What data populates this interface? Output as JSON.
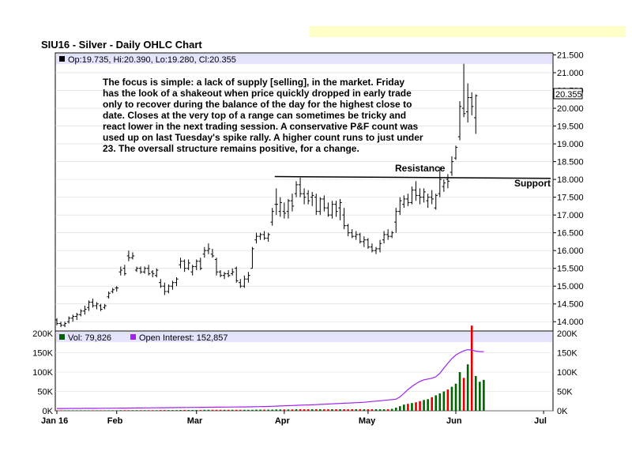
{
  "chart_data": {
    "type": "ohlc",
    "title": "SIU16 - Silver - Daily OHLC Chart",
    "price_panel": {
      "legend_text": "Op:19.735, Hi:20.390, Lo:19.280, Cl:20.355",
      "ylim": [
        13.75,
        21.5
      ],
      "y_ticks": [
        "21.500",
        "21.000",
        "20.500",
        "20.000",
        "19.500",
        "19.000",
        "18.500",
        "18.000",
        "17.500",
        "17.000",
        "16.500",
        "16.000",
        "15.500",
        "15.000",
        "14.500",
        "14.000"
      ],
      "last_price_label": "20.355",
      "last_close": 20.355,
      "annotation_lines": [
        "The focus is simple: a lack of supply [selling], in the market.  Friday",
        "has the look of a shakeout when price quickly dropped in early trade",
        "only to recover during the balance of the day for the highest close to",
        "date. Closes at the very top of a range can sometimes be tricky and",
        "react lower in the next trading session.  A conservative P&F count was",
        "used up on last Tuesday's spike rally.  A higher count runs to just under",
        "23.  The oversall structure remains positive, for a change."
      ],
      "resistance_label": "Resistance",
      "support_label": "Support",
      "resistance_line": {
        "from_index": 55,
        "to_index": 89,
        "from_value": 18.08,
        "to_value": 18.03
      },
      "bars": [
        {
          "o": 14.05,
          "h": 14.1,
          "l": 13.9,
          "c": 13.95
        },
        {
          "o": 13.95,
          "h": 14.0,
          "l": 13.85,
          "c": 13.9
        },
        {
          "o": 13.9,
          "h": 14.0,
          "l": 13.85,
          "c": 13.95
        },
        {
          "o": 14.0,
          "h": 14.15,
          "l": 13.95,
          "c": 14.1
        },
        {
          "o": 14.1,
          "h": 14.2,
          "l": 14.0,
          "c": 14.15
        },
        {
          "o": 14.15,
          "h": 14.25,
          "l": 14.05,
          "c": 14.2
        },
        {
          "o": 14.2,
          "h": 14.35,
          "l": 14.15,
          "c": 14.3
        },
        {
          "o": 14.3,
          "h": 14.45,
          "l": 14.2,
          "c": 14.35
        },
        {
          "o": 14.4,
          "h": 14.6,
          "l": 14.3,
          "c": 14.55
        },
        {
          "o": 14.55,
          "h": 14.65,
          "l": 14.4,
          "c": 14.45
        },
        {
          "o": 14.45,
          "h": 14.55,
          "l": 14.35,
          "c": 14.5
        },
        {
          "o": 14.45,
          "h": 14.5,
          "l": 14.3,
          "c": 14.35
        },
        {
          "o": 14.4,
          "h": 14.5,
          "l": 14.35,
          "c": 14.45
        },
        {
          "o": 14.7,
          "h": 14.85,
          "l": 14.65,
          "c": 14.8
        },
        {
          "o": 14.85,
          "h": 14.95,
          "l": 14.8,
          "c": 14.9
        },
        {
          "o": 14.95,
          "h": 15.0,
          "l": 14.85,
          "c": 14.95
        },
        {
          "o": 15.4,
          "h": 15.55,
          "l": 15.3,
          "c": 15.45
        },
        {
          "o": 15.5,
          "h": 15.6,
          "l": 15.3,
          "c": 15.35
        },
        {
          "o": 15.85,
          "h": 16.0,
          "l": 15.7,
          "c": 15.8
        },
        {
          "o": 15.8,
          "h": 15.95,
          "l": 15.75,
          "c": 15.85
        },
        {
          "o": 15.45,
          "h": 15.55,
          "l": 15.4,
          "c": 15.5
        },
        {
          "o": 15.5,
          "h": 15.55,
          "l": 15.35,
          "c": 15.4
        },
        {
          "o": 15.4,
          "h": 15.55,
          "l": 15.35,
          "c": 15.5
        },
        {
          "o": 15.5,
          "h": 15.6,
          "l": 15.3,
          "c": 15.35
        },
        {
          "o": 15.4,
          "h": 15.45,
          "l": 15.25,
          "c": 15.35
        },
        {
          "o": 15.3,
          "h": 15.5,
          "l": 15.25,
          "c": 15.45
        },
        {
          "o": 15.1,
          "h": 15.2,
          "l": 14.95,
          "c": 15.0
        },
        {
          "o": 15.0,
          "h": 15.1,
          "l": 14.75,
          "c": 14.85
        },
        {
          "o": 14.85,
          "h": 15.05,
          "l": 14.8,
          "c": 15.0
        },
        {
          "o": 15.0,
          "h": 15.15,
          "l": 14.9,
          "c": 15.1
        },
        {
          "o": 15.1,
          "h": 15.25,
          "l": 15.0,
          "c": 15.2
        },
        {
          "o": 15.6,
          "h": 15.8,
          "l": 15.5,
          "c": 15.7
        },
        {
          "o": 15.7,
          "h": 15.75,
          "l": 15.4,
          "c": 15.5
        },
        {
          "o": 15.5,
          "h": 15.75,
          "l": 15.45,
          "c": 15.65
        },
        {
          "o": 15.4,
          "h": 15.6,
          "l": 15.3,
          "c": 15.55
        },
        {
          "o": 15.55,
          "h": 15.75,
          "l": 15.45,
          "c": 15.7
        },
        {
          "o": 15.7,
          "h": 15.8,
          "l": 15.45,
          "c": 15.5
        },
        {
          "o": 15.9,
          "h": 16.1,
          "l": 15.8,
          "c": 16.0
        },
        {
          "o": 16.0,
          "h": 16.2,
          "l": 15.9,
          "c": 16.05
        },
        {
          "o": 15.9,
          "h": 16.05,
          "l": 15.8,
          "c": 15.85
        },
        {
          "o": 15.75,
          "h": 15.8,
          "l": 15.3,
          "c": 15.4
        },
        {
          "o": 15.4,
          "h": 15.45,
          "l": 15.25,
          "c": 15.3
        },
        {
          "o": 15.3,
          "h": 15.4,
          "l": 15.2,
          "c": 15.35
        },
        {
          "o": 15.35,
          "h": 15.45,
          "l": 15.25,
          "c": 15.3
        },
        {
          "o": 15.35,
          "h": 15.5,
          "l": 15.3,
          "c": 15.4
        },
        {
          "o": 15.5,
          "h": 15.55,
          "l": 15.1,
          "c": 15.15
        },
        {
          "o": 15.1,
          "h": 15.2,
          "l": 14.95,
          "c": 15.0
        },
        {
          "o": 15.0,
          "h": 15.3,
          "l": 14.95,
          "c": 15.2
        },
        {
          "o": 15.2,
          "h": 15.4,
          "l": 15.1,
          "c": 15.3
        },
        {
          "o": 15.5,
          "h": 16.1,
          "l": 15.5,
          "c": 16.05
        },
        {
          "o": 16.3,
          "h": 16.5,
          "l": 16.2,
          "c": 16.4
        },
        {
          "o": 16.4,
          "h": 16.5,
          "l": 16.3,
          "c": 16.45
        },
        {
          "o": 16.45,
          "h": 16.55,
          "l": 16.3,
          "c": 16.35
        },
        {
          "o": 16.35,
          "h": 16.5,
          "l": 16.25,
          "c": 16.45
        },
        {
          "o": 16.8,
          "h": 17.2,
          "l": 16.7,
          "c": 17.1
        },
        {
          "o": 17.3,
          "h": 17.75,
          "l": 17.0,
          "c": 17.3
        },
        {
          "o": 17.1,
          "h": 17.5,
          "l": 16.95,
          "c": 17.35
        },
        {
          "o": 17.1,
          "h": 17.35,
          "l": 16.9,
          "c": 17.05
        },
        {
          "o": 17.1,
          "h": 17.45,
          "l": 16.9,
          "c": 17.4
        },
        {
          "o": 17.4,
          "h": 17.6,
          "l": 17.1,
          "c": 17.25
        },
        {
          "o": 17.6,
          "h": 17.95,
          "l": 17.5,
          "c": 17.85
        },
        {
          "o": 17.85,
          "h": 18.05,
          "l": 17.5,
          "c": 17.6
        },
        {
          "o": 17.6,
          "h": 17.75,
          "l": 17.3,
          "c": 17.5
        },
        {
          "o": 17.6,
          "h": 17.7,
          "l": 17.3,
          "c": 17.4
        },
        {
          "o": 17.5,
          "h": 17.65,
          "l": 17.25,
          "c": 17.55
        },
        {
          "o": 17.5,
          "h": 17.6,
          "l": 17.0,
          "c": 17.1
        },
        {
          "o": 17.1,
          "h": 17.5,
          "l": 17.0,
          "c": 17.45
        },
        {
          "o": 17.45,
          "h": 17.55,
          "l": 17.1,
          "c": 17.2
        },
        {
          "o": 17.2,
          "h": 17.35,
          "l": 16.95,
          "c": 17.0
        },
        {
          "o": 17.0,
          "h": 17.4,
          "l": 16.9,
          "c": 17.3
        },
        {
          "o": 17.3,
          "h": 17.4,
          "l": 16.95,
          "c": 17.1
        },
        {
          "o": 17.2,
          "h": 17.45,
          "l": 16.85,
          "c": 17.35
        },
        {
          "o": 17.0,
          "h": 17.2,
          "l": 16.6,
          "c": 16.7
        },
        {
          "o": 16.7,
          "h": 16.75,
          "l": 16.4,
          "c": 16.5
        },
        {
          "o": 16.5,
          "h": 16.6,
          "l": 16.35,
          "c": 16.4
        },
        {
          "o": 16.4,
          "h": 16.55,
          "l": 16.3,
          "c": 16.45
        },
        {
          "o": 16.45,
          "h": 16.5,
          "l": 16.2,
          "c": 16.25
        },
        {
          "o": 16.25,
          "h": 16.4,
          "l": 16.1,
          "c": 16.3
        },
        {
          "o": 16.3,
          "h": 16.35,
          "l": 16.05,
          "c": 16.1
        },
        {
          "o": 16.1,
          "h": 16.2,
          "l": 15.95,
          "c": 16.0
        },
        {
          "o": 16.0,
          "h": 16.1,
          "l": 15.9,
          "c": 16.05
        },
        {
          "o": 16.05,
          "h": 16.3,
          "l": 15.95,
          "c": 16.2
        },
        {
          "o": 16.3,
          "h": 16.55,
          "l": 16.2,
          "c": 16.45
        },
        {
          "o": 16.45,
          "h": 16.6,
          "l": 16.3,
          "c": 16.4
        },
        {
          "o": 16.4,
          "h": 16.55,
          "l": 16.35,
          "c": 16.5
        },
        {
          "o": 16.8,
          "h": 17.2,
          "l": 16.5,
          "c": 17.1
        },
        {
          "o": 17.1,
          "h": 17.5,
          "l": 17.0,
          "c": 17.4
        },
        {
          "o": 17.3,
          "h": 17.55,
          "l": 17.2,
          "c": 17.45
        },
        {
          "o": 17.45,
          "h": 17.6,
          "l": 17.25,
          "c": 17.35
        },
        {
          "o": 17.35,
          "h": 17.8,
          "l": 17.3,
          "c": 17.7
        },
        {
          "o": 17.7,
          "h": 17.95,
          "l": 17.4,
          "c": 17.55
        },
        {
          "o": 17.55,
          "h": 17.75,
          "l": 17.3,
          "c": 17.5
        },
        {
          "o": 17.5,
          "h": 17.75,
          "l": 17.35,
          "c": 17.65
        },
        {
          "o": 17.4,
          "h": 17.6,
          "l": 17.2,
          "c": 17.5
        },
        {
          "o": 17.5,
          "h": 17.7,
          "l": 17.3,
          "c": 17.45
        },
        {
          "o": 17.2,
          "h": 17.6,
          "l": 17.15,
          "c": 17.55
        },
        {
          "o": 17.6,
          "h": 18.35,
          "l": 17.5,
          "c": 18.0
        },
        {
          "o": 17.8,
          "h": 18.0,
          "l": 17.65,
          "c": 17.9
        },
        {
          "o": 18.0,
          "h": 18.15,
          "l": 17.75,
          "c": 17.95
        },
        {
          "o": 18.2,
          "h": 18.65,
          "l": 18.1,
          "c": 18.5
        },
        {
          "o": 18.6,
          "h": 18.95,
          "l": 18.55,
          "c": 18.9
        },
        {
          "o": 19.2,
          "h": 20.2,
          "l": 19.1,
          "c": 20.05
        },
        {
          "o": 20.0,
          "h": 21.25,
          "l": 19.75,
          "c": 19.85
        },
        {
          "o": 19.9,
          "h": 20.7,
          "l": 19.6,
          "c": 20.3
        },
        {
          "o": 20.3,
          "h": 20.45,
          "l": 19.8,
          "c": 20.05
        },
        {
          "o": 19.735,
          "h": 20.39,
          "l": 19.28,
          "c": 20.355
        }
      ]
    },
    "volume_panel": {
      "volume_legend": "Vol: 79,826",
      "oi_legend": "Open Interest: 152,857",
      "ylim": [
        0,
        200000
      ],
      "y_ticks_left": [
        "200K",
        "150K",
        "100K",
        "50K",
        "0K"
      ],
      "y_ticks_right": [
        "200K",
        "150K",
        "100K",
        "50K",
        "0K"
      ],
      "oi_color": "#a020f0",
      "up_color": "#006400",
      "down_color": "#e00000",
      "volume": [
        1200,
        1200,
        1200,
        1200,
        1200,
        1200,
        1200,
        1200,
        1200,
        1200,
        1200,
        1200,
        1200,
        1200,
        1200,
        1200,
        1500,
        1500,
        1500,
        1500,
        1500,
        1500,
        1500,
        1500,
        1500,
        1500,
        1800,
        1800,
        1800,
        1800,
        1800,
        2000,
        2000,
        2000,
        2000,
        2000,
        2000,
        2500,
        2500,
        2500,
        2500,
        2500,
        2500,
        2500,
        2500,
        2500,
        2500,
        2500,
        2500,
        2500,
        3000,
        3000,
        3000,
        3000,
        3000,
        3500,
        3500,
        3500,
        3500,
        3500,
        4000,
        4000,
        4000,
        4000,
        4000,
        4000,
        4000,
        4000,
        4000,
        4000,
        4000,
        4000,
        4000,
        4000,
        4000,
        4000,
        4000,
        4000,
        4000,
        4000,
        4000,
        4000,
        4000,
        4000,
        5000,
        8000,
        12000,
        16000,
        18000,
        20000,
        22000,
        25000,
        28000,
        30000,
        35000,
        40000,
        45000,
        50000,
        55000,
        62000,
        70000,
        100000,
        85000,
        120000,
        220000,
        90000,
        75000,
        79826
      ],
      "open_interest": [
        6000,
        6000,
        6000,
        6100,
        6100,
        6200,
        6200,
        6300,
        6300,
        6400,
        6400,
        6500,
        6500,
        6600,
        6700,
        6800,
        6900,
        7000,
        7100,
        7200,
        7300,
        7400,
        7500,
        7600,
        7700,
        7800,
        7900,
        8000,
        8100,
        8200,
        8300,
        8400,
        8500,
        8600,
        8700,
        8800,
        8900,
        9000,
        9100,
        9200,
        9300,
        9400,
        9500,
        9600,
        9700,
        9800,
        9900,
        10000,
        10200,
        10400,
        10600,
        10800,
        11000,
        11300,
        11600,
        12000,
        12400,
        12800,
        13200,
        13600,
        14000,
        14400,
        14800,
        15200,
        15600,
        16000,
        16500,
        17000,
        17500,
        18000,
        18500,
        19000,
        19500,
        20000,
        20500,
        21000,
        21500,
        22000,
        23000,
        24000,
        25000,
        26000,
        27000,
        28000,
        29000,
        30000,
        36000,
        45000,
        55000,
        63000,
        70000,
        76000,
        80000,
        82000,
        84000,
        88000,
        97000,
        110000,
        123000,
        135000,
        144000,
        150000,
        155000,
        158000,
        157000,
        154000,
        153000,
        152857
      ]
    },
    "x_axis": {
      "labels": [
        "Jan 16",
        "Feb",
        "Mar",
        "Apr",
        "May",
        "Jun",
        "Jul"
      ],
      "label_indices": [
        0,
        15,
        35,
        57,
        78,
        100,
        122
      ]
    }
  }
}
